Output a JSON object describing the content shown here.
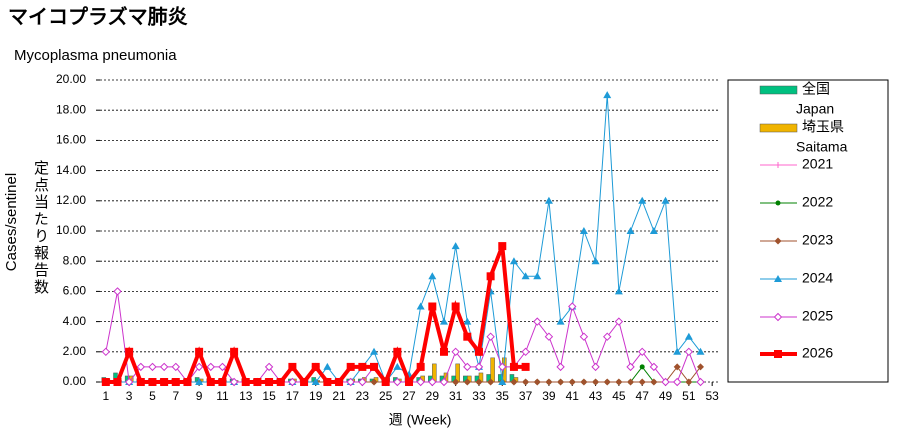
{
  "chart_data": {
    "type": "line",
    "title": "マイコプラズマ肺炎",
    "subtitle": "Mycoplasma pneumonia",
    "ylabel": "Cases/sentinel",
    "ylabel_ja": "定点当たり報告数",
    "xlabel": "週 (Week)",
    "x": [
      1,
      2,
      3,
      4,
      5,
      6,
      7,
      8,
      9,
      10,
      11,
      12,
      13,
      14,
      15,
      16,
      17,
      18,
      19,
      20,
      21,
      22,
      23,
      24,
      25,
      26,
      27,
      28,
      29,
      30,
      31,
      32,
      33,
      34,
      35,
      36,
      37,
      38,
      39,
      40,
      41,
      42,
      43,
      44,
      45,
      46,
      47,
      48,
      49,
      50,
      51,
      52,
      53
    ],
    "xlim": [
      0.5,
      53.5
    ],
    "xticks": [
      1,
      3,
      5,
      7,
      9,
      11,
      13,
      15,
      17,
      19,
      21,
      23,
      25,
      27,
      29,
      31,
      33,
      35,
      37,
      39,
      41,
      43,
      45,
      47,
      49,
      51,
      53
    ],
    "ylim": [
      0,
      20
    ],
    "yticks": [
      {
        "value": 0,
        "label": "0.00"
      },
      {
        "value": 2,
        "label": "2.00"
      },
      {
        "value": 4,
        "label": "4.00"
      },
      {
        "value": 6,
        "label": "6.00"
      },
      {
        "value": 8,
        "label": "8.00"
      },
      {
        "value": 10,
        "label": "10.00"
      },
      {
        "value": 12,
        "label": "12.00"
      },
      {
        "value": 14,
        "label": "14.00"
      },
      {
        "value": 16,
        "label": "16.00"
      },
      {
        "value": 18,
        "label": "18.00"
      },
      {
        "value": 20,
        "label": "20.00"
      }
    ],
    "grid": true,
    "series": [
      {
        "name": "全国",
        "name_en": "Japan",
        "kind": "bar",
        "color": "#00c080",
        "values": [
          0.3,
          0.6,
          0.4,
          0.2,
          0.2,
          0.2,
          0.2,
          0.2,
          0.3,
          0.2,
          0.2,
          0.2,
          0.2,
          0.2,
          0.2,
          0.2,
          0.2,
          0.2,
          0.3,
          0.2,
          0.2,
          0.2,
          0.2,
          0.2,
          0.3,
          0.3,
          0.3,
          0.3,
          0.4,
          0.4,
          0.4,
          0.4,
          0.4,
          0.5,
          0.5,
          0.5,
          null,
          null,
          null,
          null,
          null,
          null,
          null,
          null,
          null,
          null,
          null,
          null,
          null,
          null,
          null,
          null,
          null
        ]
      },
      {
        "name": "埼玉県",
        "name_en": "Saitama",
        "kind": "bar",
        "color": "#f0b400",
        "values": [
          0.2,
          0.1,
          0.4,
          0.1,
          0.1,
          0.1,
          0.1,
          0.2,
          0.2,
          0.1,
          0.1,
          0.1,
          0.1,
          0.1,
          0.1,
          0.1,
          0.2,
          0.1,
          0.1,
          0.1,
          0.1,
          0.2,
          0.3,
          0.3,
          0.3,
          0.2,
          0.3,
          0.4,
          1.2,
          0.6,
          1.2,
          0.4,
          0.6,
          1.6,
          1.6,
          0.3,
          null,
          null,
          null,
          null,
          null,
          null,
          null,
          null,
          null,
          null,
          null,
          null,
          null,
          null,
          null,
          null,
          null
        ]
      },
      {
        "name": "2021",
        "kind": "line",
        "marker": "plus",
        "color": "#ff66cc",
        "values": [
          0,
          0,
          0,
          0,
          0,
          0,
          0,
          0,
          0,
          0,
          0,
          0,
          0,
          0,
          0,
          0,
          0,
          0,
          0,
          0,
          0,
          0,
          0,
          0,
          0,
          0,
          0,
          0,
          0,
          0,
          0,
          0,
          0,
          0,
          0,
          0,
          0,
          0,
          0,
          0,
          0,
          0,
          0,
          0,
          0,
          0,
          0,
          0,
          0,
          0,
          0,
          0,
          null
        ]
      },
      {
        "name": "2022",
        "kind": "line",
        "marker": "dot",
        "color": "#008000",
        "values": [
          0,
          0,
          0,
          0,
          0,
          0,
          0,
          0,
          0,
          0,
          0,
          0,
          0,
          0,
          0,
          0,
          0,
          0,
          0,
          0,
          0,
          0,
          0,
          0,
          0,
          0,
          0,
          0,
          0,
          0,
          0,
          0,
          0,
          0,
          0,
          0,
          0,
          0,
          0,
          0,
          0,
          0,
          0,
          0,
          0,
          0,
          1,
          0,
          0,
          0,
          0,
          0,
          null
        ]
      },
      {
        "name": "2023",
        "kind": "line",
        "marker": "diamond",
        "color": "#a0522d",
        "values": [
          0,
          0,
          0,
          0,
          0,
          0,
          0,
          0,
          0,
          0,
          0,
          0,
          0,
          0,
          0,
          0,
          0,
          0,
          0,
          0,
          0,
          0,
          0,
          0,
          0,
          0,
          0,
          0,
          0,
          0,
          0,
          0,
          0,
          0,
          0,
          0,
          0,
          0,
          0,
          0,
          0,
          0,
          0,
          0,
          0,
          0,
          0,
          0,
          0,
          1,
          0,
          1,
          null
        ]
      },
      {
        "name": "2024",
        "kind": "line",
        "marker": "triangle",
        "color": "#1e9bd7",
        "values": [
          0,
          0,
          0,
          0,
          0,
          0,
          0,
          0,
          0,
          0,
          0,
          0,
          0,
          0,
          0,
          0,
          0,
          0,
          0,
          1,
          0,
          0,
          1,
          2,
          0,
          1,
          0.5,
          5,
          7,
          4,
          9,
          4,
          1,
          6,
          0,
          8,
          7,
          7,
          12,
          4,
          5,
          10,
          8,
          19,
          6,
          10,
          12,
          10,
          12,
          2,
          3,
          2,
          null
        ]
      },
      {
        "name": "2025",
        "kind": "line",
        "marker": "opendiamond",
        "color": "#cc33cc",
        "values": [
          2,
          6,
          0,
          1,
          1,
          1,
          1,
          0,
          1,
          1,
          1,
          0,
          0,
          0,
          1,
          0,
          0,
          0,
          1,
          0,
          0,
          0,
          0,
          1,
          0,
          0,
          0,
          0,
          0,
          0,
          2,
          1,
          1,
          3,
          1,
          1,
          2,
          4,
          3,
          1,
          5,
          3,
          1,
          3,
          4,
          1,
          2,
          1,
          0,
          0,
          2,
          0,
          null
        ]
      },
      {
        "name": "2026",
        "kind": "line",
        "marker": "square",
        "color": "#ff0000",
        "thick": true,
        "values": [
          0,
          0,
          2,
          0,
          0,
          0,
          0,
          0,
          2,
          0,
          0,
          2,
          0,
          0,
          0,
          0,
          1,
          0,
          1,
          0,
          0,
          1,
          1,
          1,
          0,
          2,
          0,
          1,
          5,
          2,
          5,
          3,
          2,
          7,
          9,
          1,
          1,
          null,
          null,
          null,
          null,
          null,
          null,
          null,
          null,
          null,
          null,
          null,
          null,
          null,
          null,
          null,
          null
        ]
      }
    ]
  }
}
